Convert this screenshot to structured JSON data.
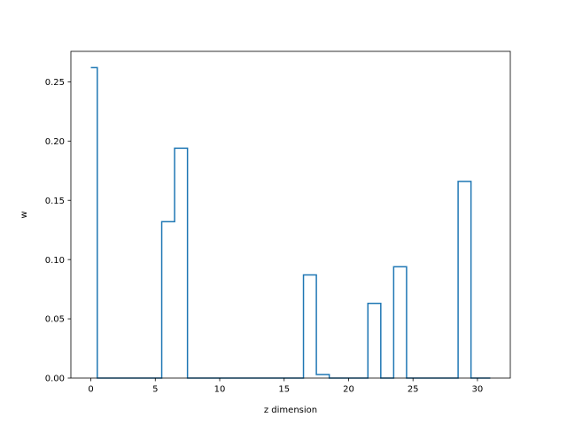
{
  "chart_data": {
    "type": "line",
    "step": "mid",
    "title": "",
    "xlabel": "z dimension",
    "ylabel": "w",
    "xlim": [
      -1.55,
      32.55
    ],
    "ylim": [
      0,
      0.2757
    ],
    "xticks": [
      0,
      5,
      10,
      15,
      20,
      25,
      30
    ],
    "yticks": [
      0.0,
      0.05,
      0.1,
      0.15,
      0.2,
      0.25
    ],
    "xtick_labels": [
      "0",
      "5",
      "10",
      "15",
      "20",
      "25",
      "30"
    ],
    "ytick_labels": [
      "0.00",
      "0.05",
      "0.10",
      "0.15",
      "0.20",
      "0.25"
    ],
    "grid": false,
    "legend": "none",
    "series": [
      {
        "color": "#1f77b4",
        "x": [
          0,
          1,
          2,
          3,
          4,
          5,
          6,
          7,
          8,
          9,
          10,
          11,
          12,
          13,
          14,
          15,
          16,
          17,
          18,
          19,
          20,
          21,
          22,
          23,
          24,
          25,
          26,
          27,
          28,
          29,
          30,
          31
        ],
        "y": [
          0.262,
          0,
          0,
          0,
          0,
          0,
          0.132,
          0.194,
          0,
          0,
          0,
          0,
          0,
          0,
          0,
          0,
          0,
          0.087,
          0.003,
          0,
          0,
          0,
          0.063,
          0,
          0.094,
          0,
          0,
          0,
          0,
          0.166,
          0,
          0
        ]
      }
    ]
  }
}
